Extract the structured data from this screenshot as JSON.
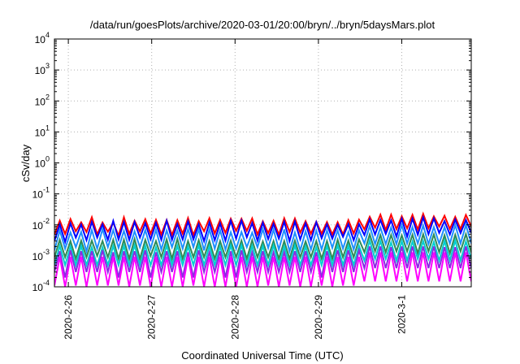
{
  "chart_data": {
    "type": "line",
    "title": "/data/run/goesPlots/archive/2020-03-01/20:00/bryn/../bryn/5daysMars.plot",
    "xlabel": "Coordinated Universal Time (UTC)",
    "ylabel": "cSv/day",
    "yscale": "log",
    "ylim": [
      0.0001,
      10000
    ],
    "yticks": [
      {
        "value": 0.0001,
        "label": "10",
        "exp": "-4"
      },
      {
        "value": 0.001,
        "label": "10",
        "exp": "-3"
      },
      {
        "value": 0.01,
        "label": "10",
        "exp": "-2"
      },
      {
        "value": 0.1,
        "label": "10",
        "exp": "-1"
      },
      {
        "value": 1,
        "label": "10",
        "exp": "0"
      },
      {
        "value": 10,
        "label": "10",
        "exp": "1"
      },
      {
        "value": 100,
        "label": "10",
        "exp": "2"
      },
      {
        "value": 1000,
        "label": "10",
        "exp": "3"
      },
      {
        "value": 10000,
        "label": "10",
        "exp": "4"
      }
    ],
    "xlim": [
      "2020-02-25T20:00",
      "2020-03-01T20:00"
    ],
    "xticks": [
      {
        "value": "2020-02-26T00:00",
        "label": "2020-2-26"
      },
      {
        "value": "2020-02-27T00:00",
        "label": "2020-2-27"
      },
      {
        "value": "2020-02-28T00:00",
        "label": "2020-2-28"
      },
      {
        "value": "2020-02-29T00:00",
        "label": "2020-2-29"
      },
      {
        "value": "2020-03-01T00:00",
        "label": "2020-3-1"
      }
    ],
    "grid": true,
    "series": [
      {
        "color": "#ff0000",
        "values": [
          0.0048,
          0.0136,
          0.0051,
          0.0154,
          0.0062,
          0.0121,
          0.0059,
          0.0176,
          0.0049,
          0.0119,
          0.006,
          0.0117,
          0.0045,
          0.0176,
          0.0051,
          0.0136,
          0.0061,
          0.0152,
          0.0052,
          0.0145,
          0.0049,
          0.0143,
          0.0047,
          0.0142,
          0.0052,
          0.0166,
          0.0047,
          0.0132,
          0.0062,
          0.0164,
          0.0053,
          0.0144,
          0.0055,
          0.0158,
          0.0064,
          0.0158,
          0.0064,
          0.0161,
          0.0049,
          0.013,
          0.0054,
          0.0135,
          0.0048,
          0.0164,
          0.0059,
          0.0161,
          0.0056,
          0.0132,
          0.0052,
          0.0127,
          0.0052,
          0.0123,
          0.0049,
          0.0122,
          0.0049,
          0.0142,
          0.0053,
          0.0147,
          0.0072,
          0.0183,
          0.0081,
          0.0213,
          0.0068,
          0.0213,
          0.0073,
          0.0189,
          0.0077,
          0.021,
          0.0071,
          0.0227,
          0.0078,
          0.0188,
          0.0088,
          0.0197,
          0.0074,
          0.0182,
          0.0073,
          0.0209,
          0.0089
        ]
      },
      {
        "color": "#0000ff",
        "values": [
          0.003,
          0.0103,
          0.0028,
          0.0112,
          0.0039,
          0.0102,
          0.0032,
          0.0125,
          0.0039,
          0.0105,
          0.0033,
          0.0134,
          0.0034,
          0.0123,
          0.0033,
          0.0124,
          0.0039,
          0.0112,
          0.0034,
          0.0115,
          0.0033,
          0.0136,
          0.0033,
          0.0106,
          0.0034,
          0.0129,
          0.0034,
          0.0104,
          0.003,
          0.0119,
          0.0032,
          0.0112,
          0.0031,
          0.0136,
          0.0036,
          0.0137,
          0.004,
          0.0115,
          0.0031,
          0.0118,
          0.0035,
          0.0108,
          0.0036,
          0.0126,
          0.003,
          0.0127,
          0.0034,
          0.0112,
          0.0032,
          0.0121,
          0.0037,
          0.0104,
          0.0036,
          0.0101,
          0.0041,
          0.0105,
          0.0032,
          0.0106,
          0.0047,
          0.0149,
          0.0049,
          0.0144,
          0.0051,
          0.014,
          0.0042,
          0.0158,
          0.0042,
          0.0158,
          0.0048,
          0.0174,
          0.005,
          0.0161,
          0.0055,
          0.0133,
          0.0049,
          0.0148,
          0.0054,
          0.0144,
          0.0055
        ]
      },
      {
        "color": "#1e90ff",
        "values": [
          0.0015,
          0.0066,
          0.0017,
          0.0057,
          0.0019,
          0.0059,
          0.0014,
          0.0068,
          0.0017,
          0.0073,
          0.0019,
          0.0068,
          0.0018,
          0.0064,
          0.0017,
          0.0062,
          0.0019,
          0.0068,
          0.0017,
          0.0069,
          0.0016,
          0.0066,
          0.0019,
          0.0065,
          0.0017,
          0.0073,
          0.0019,
          0.0071,
          0.0015,
          0.0072,
          0.0017,
          0.0067,
          0.0016,
          0.0058,
          0.0017,
          0.0059,
          0.0019,
          0.0056,
          0.0019,
          0.0072,
          0.0018,
          0.007,
          0.0016,
          0.0071,
          0.0014,
          0.0057,
          0.0015,
          0.0062,
          0.0016,
          0.0065,
          0.0016,
          0.0066,
          0.0018,
          0.0066,
          0.0017,
          0.0059,
          0.0016,
          0.0067,
          0.0025,
          0.0092,
          0.0024,
          0.0082,
          0.0024,
          0.0082,
          0.0024,
          0.0097,
          0.0025,
          0.0084,
          0.0025,
          0.0096,
          0.0024,
          0.0085,
          0.0025,
          0.0084,
          0.0025,
          0.0099,
          0.0025,
          0.0099,
          0.0025
        ]
      },
      {
        "color": "#2e8b57",
        "values": [
          0.0009,
          0.0033,
          0.0009,
          0.003,
          0.0008,
          0.0031,
          0.0009,
          0.0031,
          0.001,
          0.003,
          0.0009,
          0.0033,
          0.0008,
          0.0033,
          0.0008,
          0.0035,
          0.0008,
          0.0033,
          0.001,
          0.003,
          0.0009,
          0.0034,
          0.0008,
          0.0035,
          0.0008,
          0.003,
          0.0009,
          0.0032,
          0.0009,
          0.003,
          0.0008,
          0.003,
          0.0009,
          0.0031,
          0.0009,
          0.0031,
          0.0008,
          0.0032,
          0.0009,
          0.0029,
          0.0009,
          0.003,
          0.0008,
          0.003,
          0.0008,
          0.0031,
          0.0009,
          0.0029,
          0.0009,
          0.003,
          0.0008,
          0.003,
          0.0008,
          0.0033,
          0.0009,
          0.0031,
          0.0009,
          0.0034,
          0.0013,
          0.0049,
          0.0014,
          0.0047,
          0.0013,
          0.0047,
          0.0014,
          0.0046,
          0.0014,
          0.0048,
          0.0012,
          0.005,
          0.0014,
          0.0049,
          0.0013,
          0.0046,
          0.0012,
          0.0048,
          0.0014,
          0.005,
          0.0013
        ]
      },
      {
        "color": "#00ced1",
        "values": [
          0.0005,
          0.0021,
          0.0005,
          0.002,
          0.0005,
          0.0021,
          0.0005,
          0.0019,
          0.0005,
          0.0019,
          0.0005,
          0.0021,
          0.0005,
          0.0021,
          0.0005,
          0.0022,
          0.0005,
          0.0021,
          0.0005,
          0.0019,
          0.0005,
          0.0022,
          0.0005,
          0.0021,
          0.0005,
          0.002,
          0.0005,
          0.0022,
          0.0005,
          0.0021,
          0.0005,
          0.002,
          0.0005,
          0.0022,
          0.0005,
          0.0022,
          0.0005,
          0.0021,
          0.0005,
          0.0021,
          0.0005,
          0.0022,
          0.0005,
          0.002,
          0.0005,
          0.0022,
          0.0005,
          0.002,
          0.0005,
          0.0019,
          0.0005,
          0.0021,
          0.0005,
          0.0022,
          0.0005,
          0.0021,
          0.0005,
          0.0021,
          0.0007,
          0.0031,
          0.0008,
          0.003,
          0.0008,
          0.0027,
          0.0007,
          0.003,
          0.0007,
          0.0029,
          0.0008,
          0.003,
          0.0008,
          0.0028,
          0.0007,
          0.003,
          0.0007,
          0.0031,
          0.0007,
          0.0029,
          0.0008
        ]
      },
      {
        "color": "#8a2be2",
        "values": [
          0.0003,
          0.0014,
          0.0002,
          0.0015,
          0.0003,
          0.0014,
          0.0003,
          0.0014,
          0.0003,
          0.0015,
          0.0003,
          0.0013,
          0.0002,
          0.0014,
          0.0003,
          0.0014,
          0.0003,
          0.0015,
          0.0002,
          0.0013,
          0.0003,
          0.0014,
          0.0003,
          0.0014,
          0.0002,
          0.0013,
          0.0002,
          0.0015,
          0.0003,
          0.0013,
          0.0003,
          0.0014,
          0.0002,
          0.0014,
          0.0002,
          0.0015,
          0.0003,
          0.0013,
          0.0003,
          0.0014,
          0.0003,
          0.0013,
          0.0003,
          0.0013,
          0.0003,
          0.0014,
          0.0003,
          0.0014,
          0.0003,
          0.0013,
          0.0002,
          0.0014,
          0.0003,
          0.0015,
          0.0003,
          0.0015,
          0.0003,
          0.0015,
          0.0004,
          0.002,
          0.0004,
          0.002,
          0.0004,
          0.0019,
          0.0004,
          0.002,
          0.0004,
          0.002,
          0.0004,
          0.002,
          0.0004,
          0.002,
          0.0004,
          0.0019,
          0.0004,
          0.0019,
          0.0004,
          0.002,
          0.0004
        ]
      },
      {
        "color": "#ff00ff",
        "values": [
          0.00011,
          0.00094,
          0.0001,
          0.00093,
          0.00011,
          0.00094,
          0.0001,
          0.00094,
          0.00011,
          0.00093,
          0.00011,
          0.00094,
          0.00011,
          0.00093,
          0.0001,
          0.00094,
          0.00011,
          0.00094,
          0.0001,
          0.00092,
          0.0001,
          0.00093,
          0.0001,
          0.00093,
          0.0001,
          0.00094,
          0.00011,
          0.00093,
          0.0001,
          0.00093,
          0.0001,
          0.00093,
          0.0001,
          0.00093,
          0.0001,
          0.00093,
          0.0001,
          0.00094,
          0.0001,
          0.00094,
          0.00011,
          0.00093,
          0.0001,
          0.00093,
          0.00011,
          0.00094,
          0.0001,
          0.00094,
          0.0001,
          0.00094,
          0.00011,
          0.00094,
          0.0001,
          0.00092,
          0.00011,
          0.00093,
          0.00011,
          0.00093,
          0.00015,
          0.0013,
          0.00015,
          0.0013,
          0.00015,
          0.0013,
          0.00015,
          0.0013,
          0.00015,
          0.0013,
          0.00015,
          0.0013,
          0.00015,
          0.0013,
          0.00015,
          0.0013,
          0.00015,
          0.0013,
          0.00015,
          0.0013,
          0.00015
        ]
      }
    ]
  }
}
